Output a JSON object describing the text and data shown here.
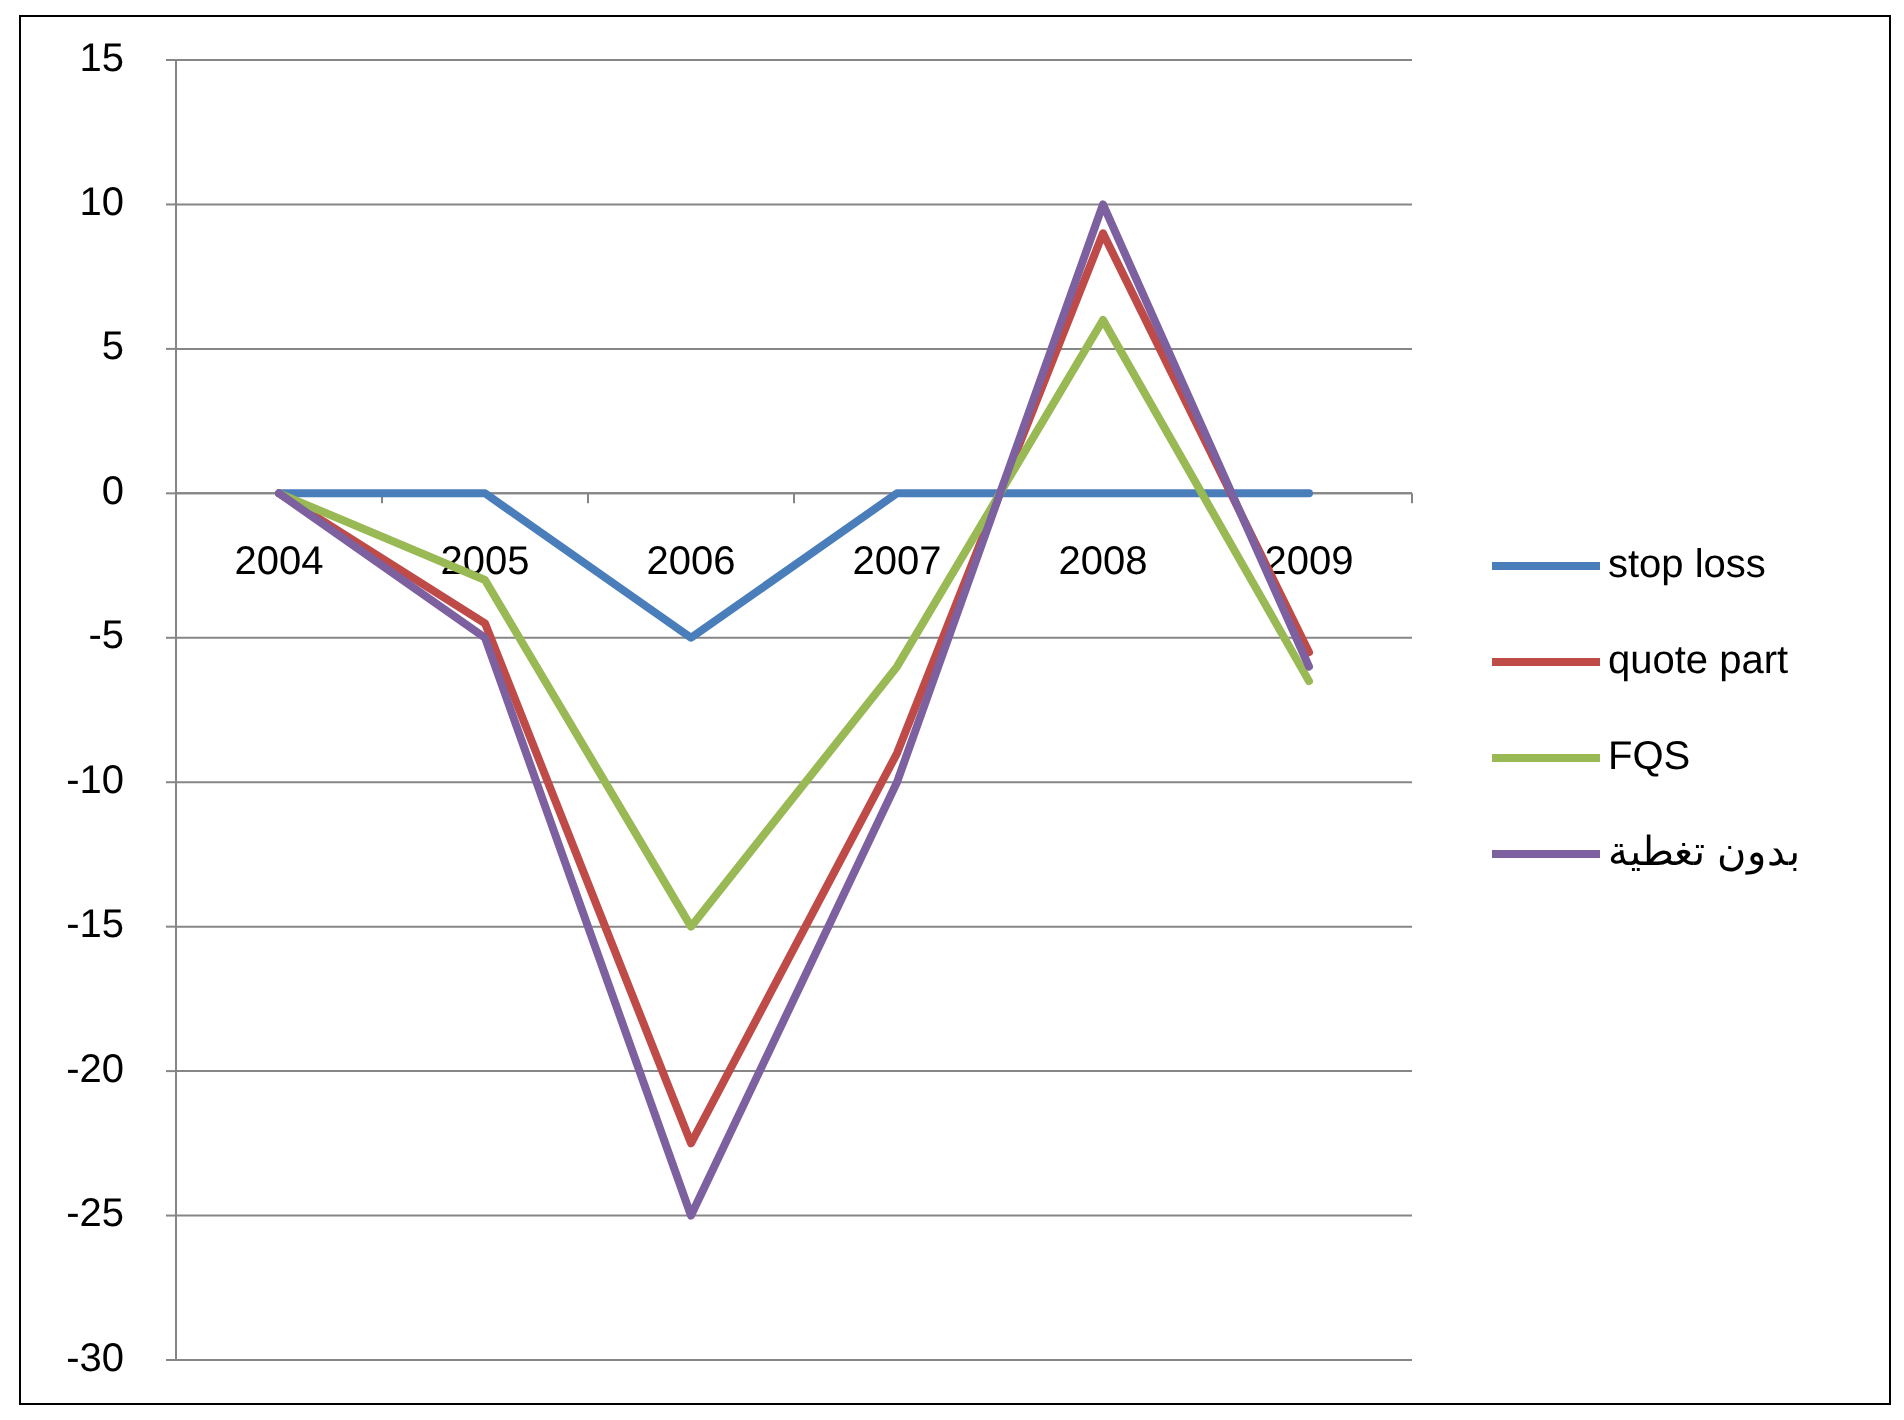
{
  "chart_data": {
    "type": "line",
    "categories": [
      "2004",
      "2005",
      "2006",
      "2007",
      "2008",
      "2009"
    ],
    "series": [
      {
        "name": "stop loss",
        "color": "#4a7ebb",
        "values": [
          0,
          0,
          -5,
          0,
          0,
          0
        ]
      },
      {
        "name": "quote part",
        "color": "#be4b48",
        "values": [
          0,
          -4.5,
          -22.5,
          -9,
          9,
          -5.5
        ]
      },
      {
        "name": "FQS",
        "color": "#98b954",
        "values": [
          0,
          -3,
          -15,
          -6,
          6,
          -6.5
        ]
      },
      {
        "name": "بدون تغطية",
        "color": "#7d60a0",
        "values": [
          0,
          -5,
          -25,
          -10,
          10,
          -6
        ]
      }
    ],
    "ylim": [
      -30,
      15
    ],
    "yticks": [
      -30,
      -25,
      -20,
      -15,
      -10,
      -5,
      0,
      5,
      10,
      15
    ],
    "grid": "y",
    "legend": "right",
    "marker": "none",
    "line_style": "solid"
  }
}
